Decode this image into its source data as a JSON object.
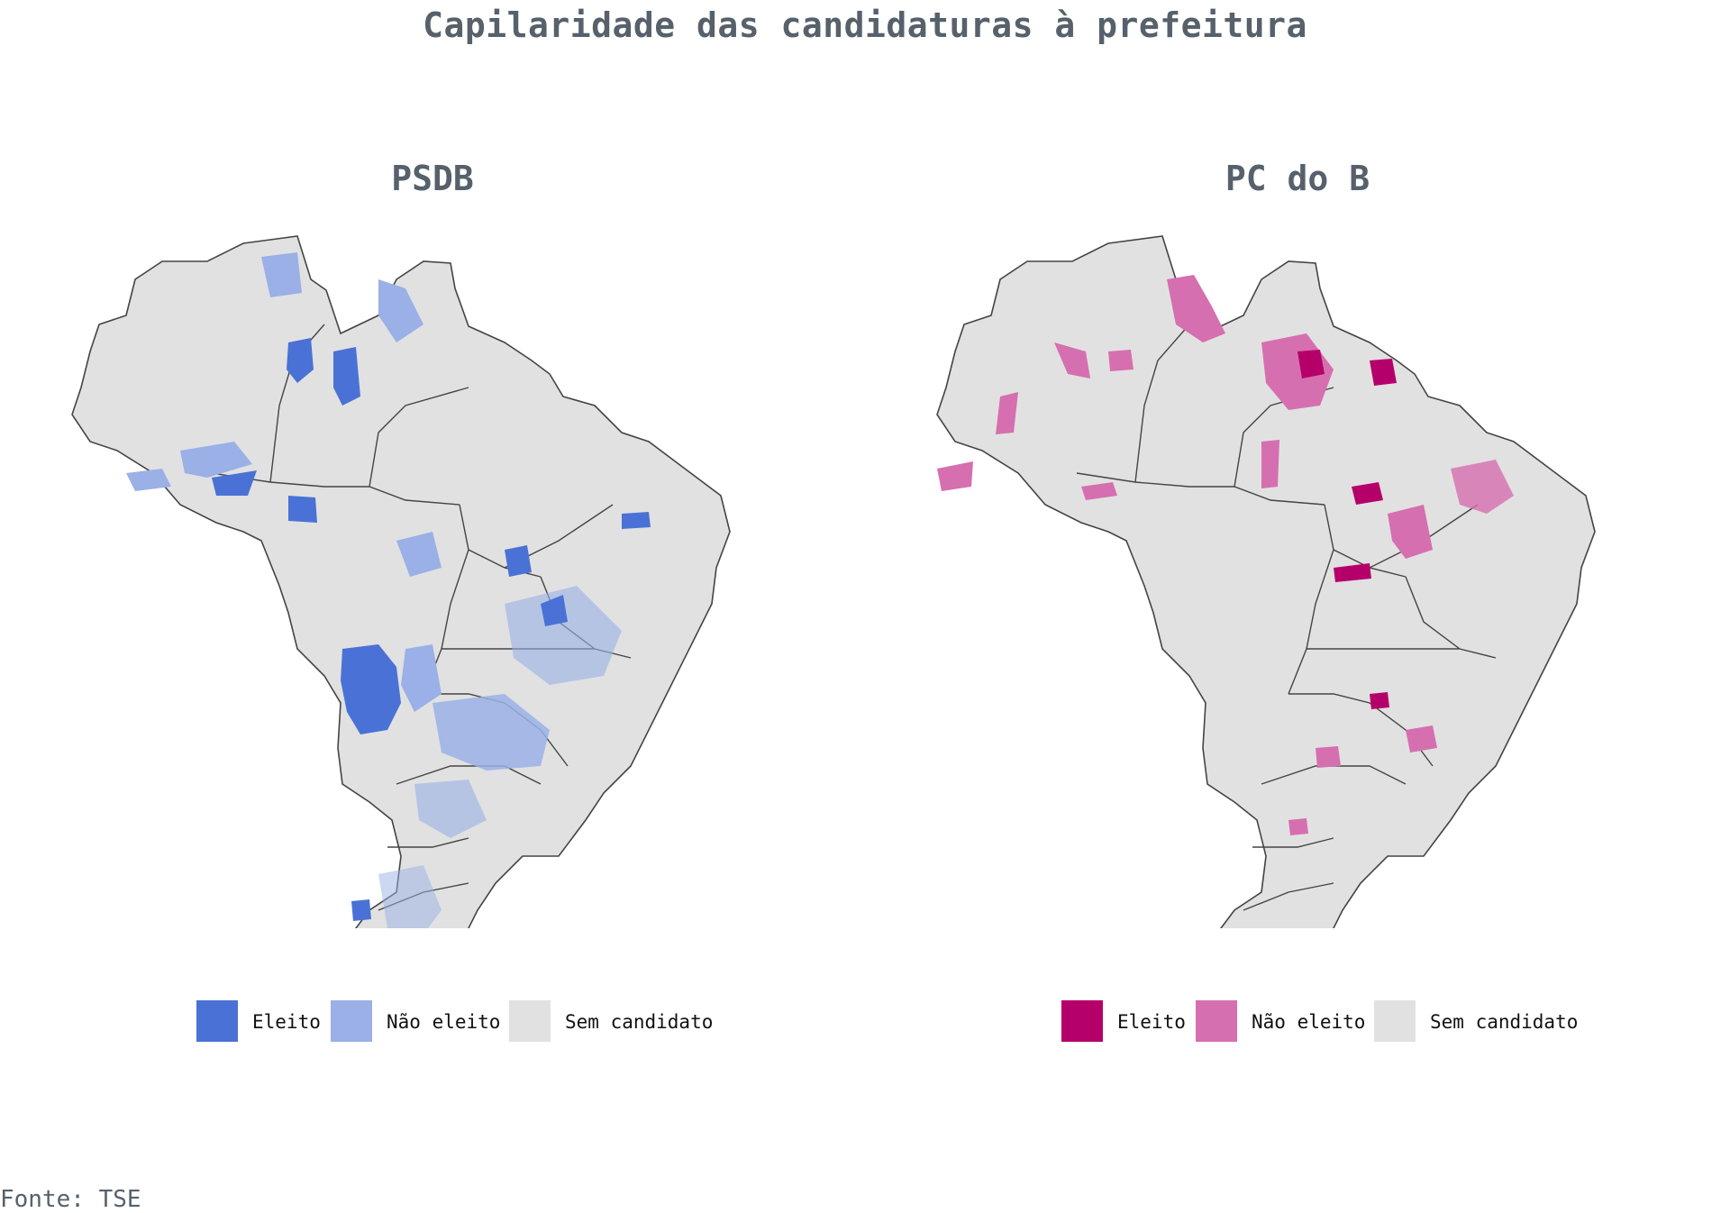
{
  "title": "Capilaridade das candidaturas à prefeitura",
  "source": "Fonte: TSE",
  "maps": [
    {
      "title": "PSDB",
      "colors": {
        "elected": "#4a72d6",
        "not_elected": "#9ab0e6",
        "none": "#e1e1e1"
      },
      "legend": [
        {
          "label": "Eleito",
          "color": "#4a72d6"
        },
        {
          "label": "Não eleito",
          "color": "#9ab0e6"
        },
        {
          "label": "Sem candidato",
          "color": "#e1e1e1"
        }
      ]
    },
    {
      "title": "PC do B",
      "colors": {
        "elected": "#b5006a",
        "not_elected": "#d66fb0",
        "none": "#e1e1e1"
      },
      "legend": [
        {
          "label": "Eleito",
          "color": "#b5006a"
        },
        {
          "label": "Não eleito",
          "color": "#d66fb0"
        },
        {
          "label": "Sem candidato",
          "color": "#e1e1e1"
        }
      ]
    }
  ]
}
